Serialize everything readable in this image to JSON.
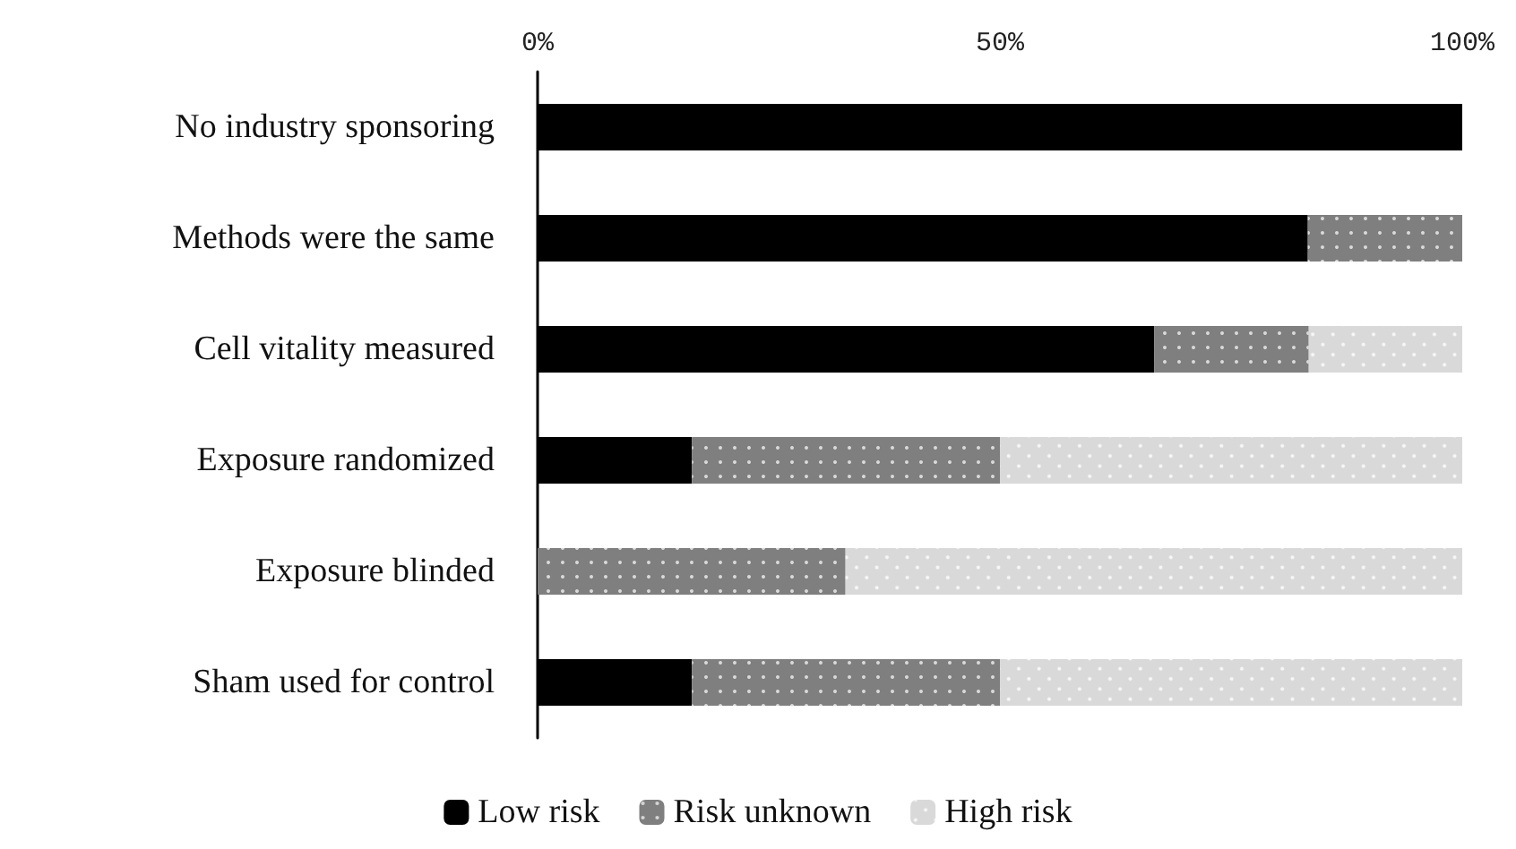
{
  "chart_data": {
    "type": "bar",
    "orientation": "horizontal",
    "stacked": true,
    "categories": [
      "No industry sponsoring",
      "Methods were the same",
      "Cell vitality measured",
      "Exposure randomized",
      "Exposure blinded",
      "Sham used for control"
    ],
    "series": [
      {
        "name": "Low risk",
        "color": "#000000",
        "values": [
          100,
          83.3,
          66.7,
          16.7,
          0,
          16.7
        ]
      },
      {
        "name": "Risk unknown",
        "color": "#7f7f7f",
        "values": [
          0,
          16.7,
          16.7,
          33.3,
          33.3,
          33.3
        ]
      },
      {
        "name": "High risk",
        "color": "#d9d9d9",
        "values": [
          0,
          0,
          16.7,
          50,
          66.7,
          50
        ]
      }
    ],
    "xlim": [
      0,
      100
    ],
    "xticks": [
      {
        "value": 0,
        "label": "0%"
      },
      {
        "value": 50,
        "label": "50%"
      },
      {
        "value": 100,
        "label": "100%"
      }
    ],
    "grid": false,
    "legend": "bottom"
  }
}
